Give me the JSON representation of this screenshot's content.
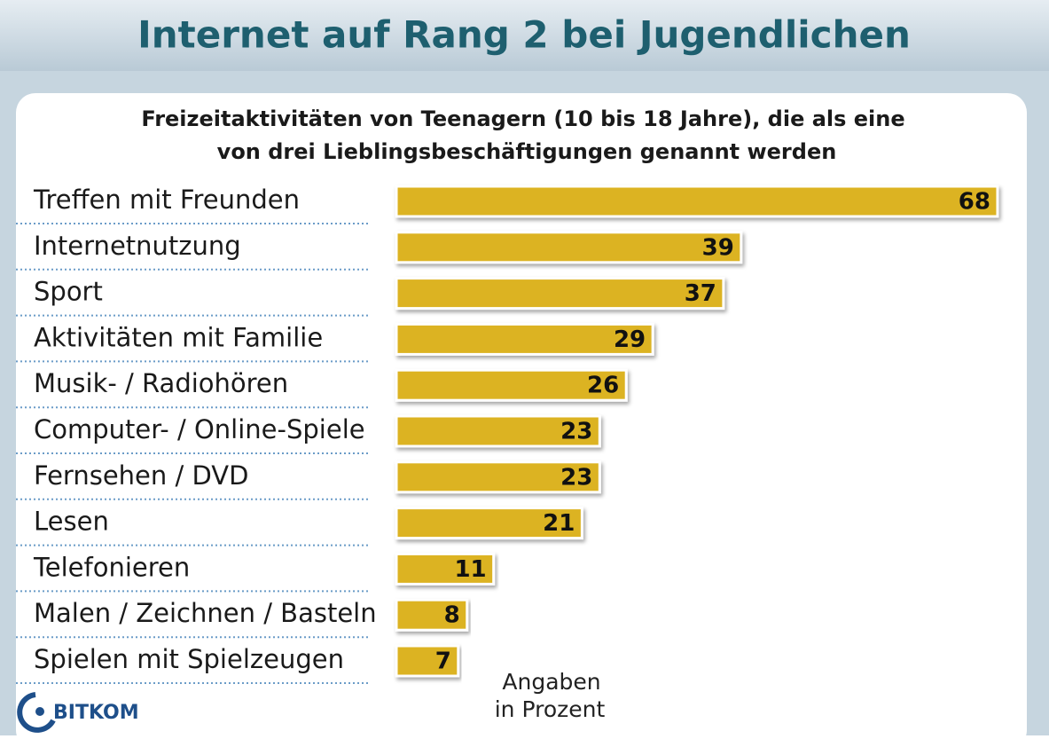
{
  "chart_data": {
    "type": "bar",
    "orientation": "horizontal",
    "title": "Internet auf Rang 2 bei Jugendlichen",
    "subtitle": [
      "Freizeitaktivitäten von Teenagern (10 bis 18 Jahre), die als eine",
      "von drei Lieblingsbeschäftigungen genannt werden"
    ],
    "categories": [
      "Treffen mit Freunden",
      "Internetnutzung",
      "Sport",
      "Aktivitäten mit Familie",
      "Musik- / Radiohören",
      "Computer- / Online-Spiele",
      "Fernsehen / DVD",
      "Lesen",
      "Telefonieren",
      "Malen / Zeichnen / Basteln",
      "Spielen mit Spielzeugen"
    ],
    "values": [
      68,
      39,
      37,
      29,
      26,
      23,
      23,
      21,
      11,
      8,
      7
    ],
    "color": "#dcb320",
    "note": [
      "Angaben",
      "in Prozent"
    ],
    "source": "BITKOM"
  }
}
